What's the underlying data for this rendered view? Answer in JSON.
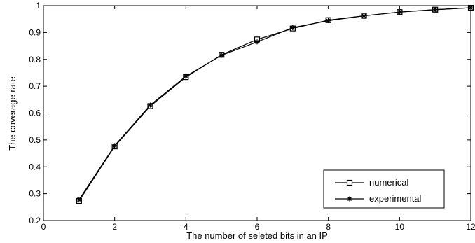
{
  "chart_data": {
    "type": "line",
    "title": "",
    "xlabel": "The number of seleted bits in an IP",
    "ylabel": "The coverage rate",
    "xlim": [
      0,
      12
    ],
    "ylim": [
      0.2,
      1
    ],
    "x_ticks": [
      "0",
      "2",
      "4",
      "6",
      "8",
      "10",
      "12"
    ],
    "y_ticks": [
      "0.2",
      "0.3",
      "0.4",
      "0.5",
      "0.6",
      "0.7",
      "0.8",
      "0.9",
      "1"
    ],
    "grid": false,
    "legend_position": "bottom-right",
    "x": [
      1,
      2,
      3,
      4,
      5,
      6,
      7,
      8,
      9,
      10,
      11,
      12
    ],
    "series": [
      {
        "name": "numerical",
        "marker": "square",
        "color": "#000000",
        "values": [
          0.273,
          0.476,
          0.626,
          0.734,
          0.817,
          0.874,
          0.915,
          0.946,
          0.962,
          0.976,
          0.985,
          0.992
        ]
      },
      {
        "name": "experimental",
        "marker": "star",
        "color": "#000000",
        "values": [
          0.278,
          0.479,
          0.63,
          0.737,
          0.815,
          0.865,
          0.918,
          0.944,
          0.962,
          0.976,
          0.985,
          0.992
        ]
      }
    ]
  }
}
